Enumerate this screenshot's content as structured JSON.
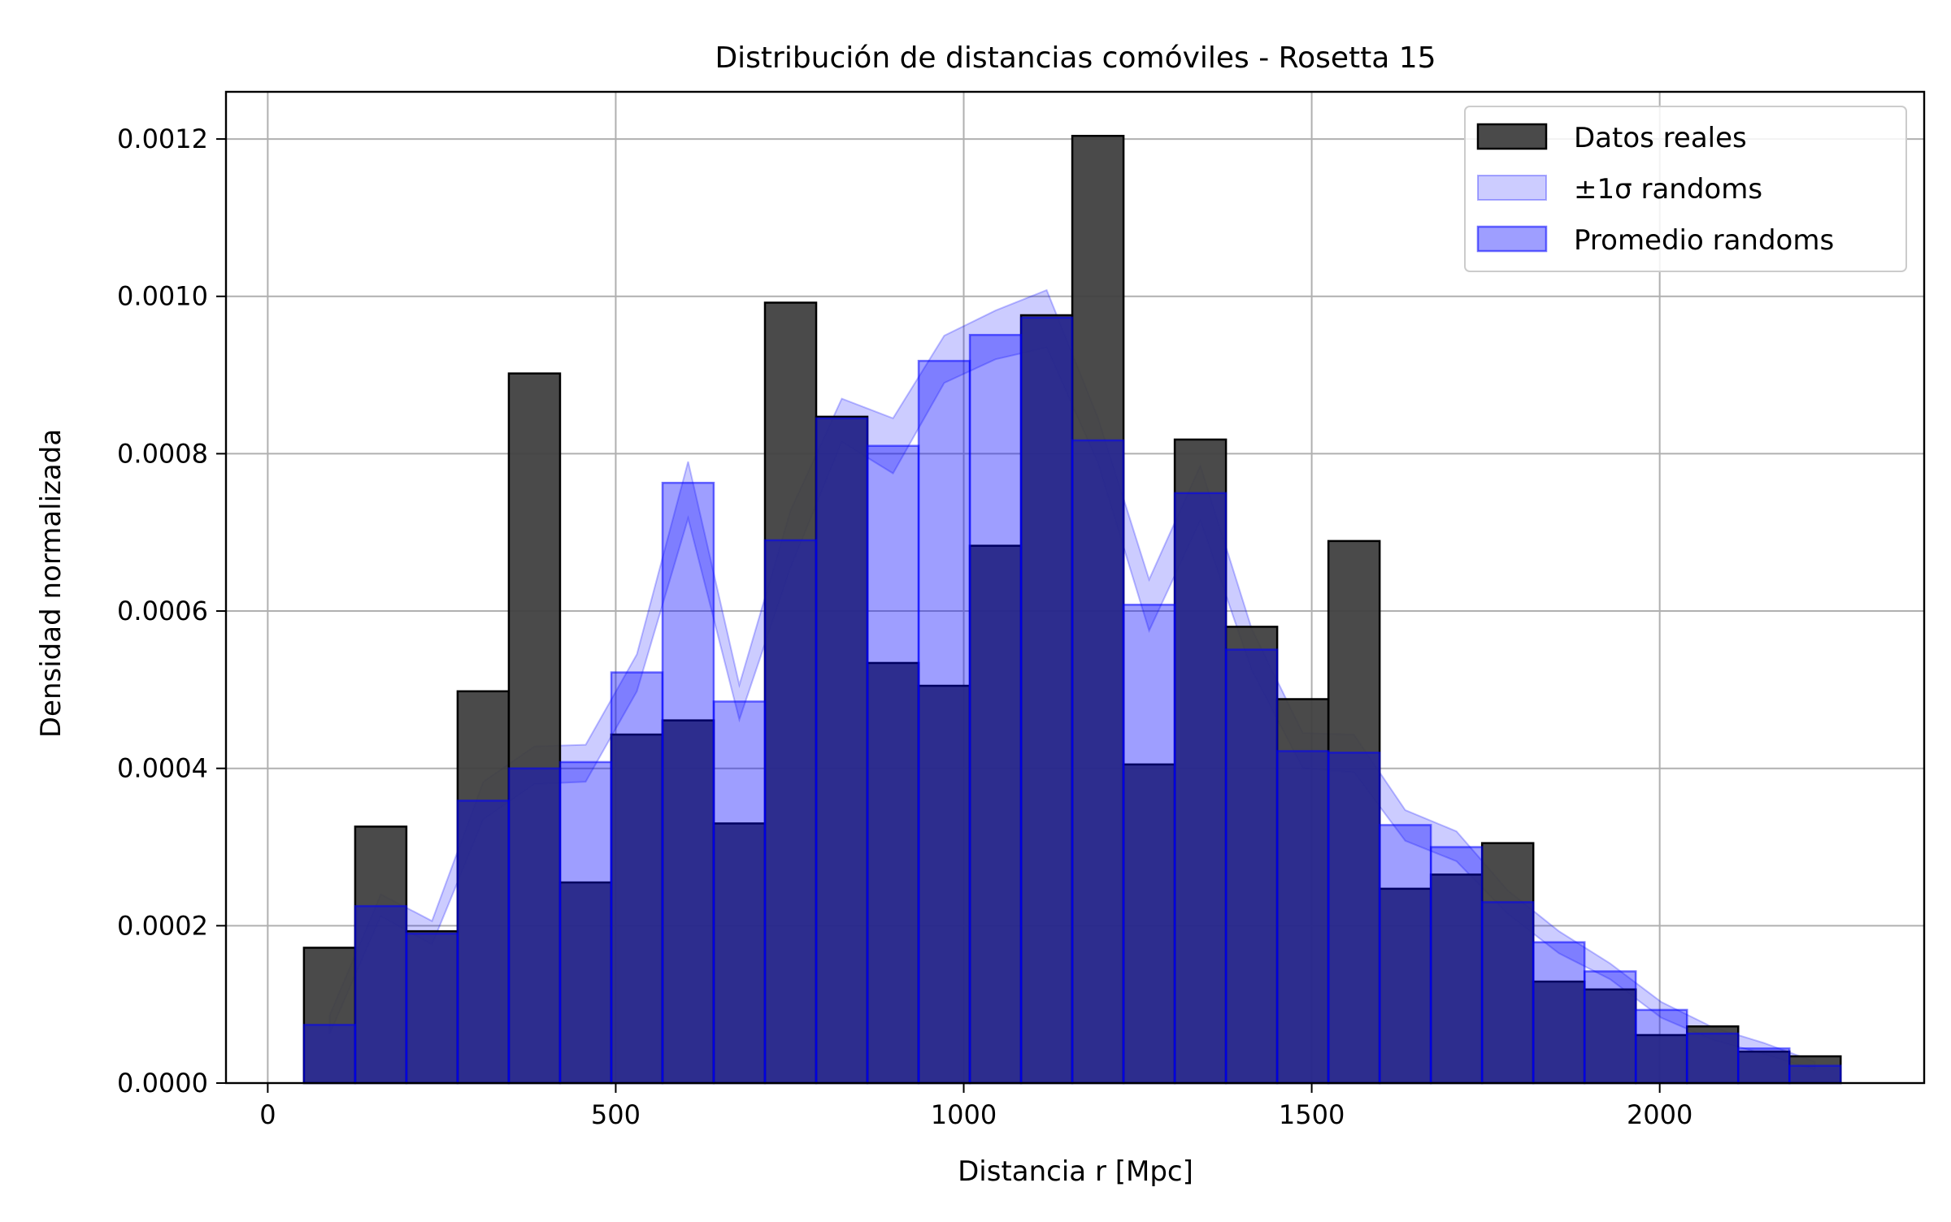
{
  "chart_data": {
    "type": "bar",
    "title": "Distribución de distancias comóviles - Rosetta 15",
    "xlabel": "Distancia r [Mpc]",
    "ylabel": "Densidad normalizada",
    "xlim": [
      -60,
      2380
    ],
    "ylim": [
      0,
      0.00126
    ],
    "grid": true,
    "legend_position": "top-right",
    "x_ticks": [
      0,
      500,
      1000,
      1500,
      2000
    ],
    "x_tick_labels": [
      "0",
      "500",
      "1000",
      "1500",
      "2000"
    ],
    "y_ticks": [
      0,
      0.0002,
      0.0004,
      0.0006,
      0.0008,
      0.001,
      0.0012
    ],
    "y_tick_labels": [
      "0.0000",
      "0.0002",
      "0.0004",
      "0.0006",
      "0.0008",
      "0.0010",
      "0.0012"
    ],
    "bin_edges": [
      52,
      125.6,
      199.2,
      272.8,
      346.4,
      420,
      493.6,
      567.2,
      640.8,
      714.4,
      788,
      861.6,
      935.2,
      1008.8,
      1082.4,
      1156,
      1229.6,
      1303.2,
      1376.8,
      1450.4,
      1524,
      1597.6,
      1671.2,
      1744.8,
      1818.4,
      1892,
      1965.6,
      2039.2,
      2112.8,
      2186.4,
      2260
    ],
    "colors": {
      "datos_reales": "#404040",
      "promedio_randoms": "#0000ff",
      "band": "#0000ff",
      "axes": "#000000",
      "grid": "#b0b0b0"
    },
    "series": [
      {
        "name": "Datos reales",
        "values": [
          0.000172,
          0.000326,
          0.000193,
          0.000498,
          0.000902,
          0.000255,
          0.000443,
          0.000461,
          0.00033,
          0.000992,
          0.000847,
          0.000534,
          0.000505,
          0.000683,
          0.000976,
          0.001204,
          0.000405,
          0.000818,
          0.00058,
          0.000488,
          0.000689,
          0.000247,
          0.000265,
          0.000305,
          0.000129,
          0.000119,
          6.1e-05,
          7.2e-05,
          4e-05,
          3.4e-05
        ]
      },
      {
        "name": "Promedio randoms",
        "values": [
          7.4e-05,
          0.000225,
          0.00019,
          0.000359,
          0.0004,
          0.000408,
          0.000522,
          0.000763,
          0.000485,
          0.00069,
          0.000845,
          0.00081,
          0.000918,
          0.000951,
          0.000973,
          0.000817,
          0.000608,
          0.00075,
          0.000551,
          0.000422,
          0.00042,
          0.000328,
          0.0003,
          0.00023,
          0.000179,
          0.000142,
          9.3e-05,
          6.3e-05,
          4.4e-05,
          2.2e-05
        ]
      },
      {
        "name": "±1σ randoms",
        "x": [
          88.8,
          162.4,
          236,
          309.6,
          383.2,
          456.8,
          530.4,
          604,
          677.6,
          751.2,
          824.8,
          898.4,
          972,
          1045.6,
          1119.2,
          1192.8,
          1266.4,
          1340,
          1413.6,
          1487.2,
          1560.8,
          1634.4,
          1708,
          1781.6,
          1855.2,
          1928.8,
          2002.4,
          2076,
          2149.6,
          2223.2
        ],
        "lower": [
          6.2e-05,
          0.000212,
          0.000176,
          0.000335,
          0.00038,
          0.000383,
          0.000498,
          0.000718,
          0.000462,
          0.000655,
          0.000815,
          0.000775,
          0.00089,
          0.00092,
          0.000935,
          0.000788,
          0.000575,
          0.000715,
          0.000525,
          0.0004,
          0.000395,
          0.000308,
          0.000282,
          0.000215,
          0.000165,
          0.000132,
          8.3e-05,
          5.5e-05,
          3.7e-05,
          1.7e-05
        ],
        "upper": [
          8.6e-05,
          0.00024,
          0.000206,
          0.000383,
          0.000428,
          0.00043,
          0.000545,
          0.00079,
          0.000506,
          0.000728,
          0.00087,
          0.000845,
          0.00095,
          0.000982,
          0.001008,
          0.000846,
          0.00064,
          0.000785,
          0.000578,
          0.000445,
          0.000443,
          0.000347,
          0.00032,
          0.000245,
          0.000193,
          0.000152,
          0.000103,
          7.1e-05,
          5.1e-05,
          2.7e-05
        ]
      }
    ],
    "legend": [
      {
        "label": "Datos reales",
        "kind": "datos_reales"
      },
      {
        "label": "±1σ randoms",
        "kind": "band"
      },
      {
        "label": "Promedio randoms",
        "kind": "promedio_randoms"
      }
    ]
  }
}
